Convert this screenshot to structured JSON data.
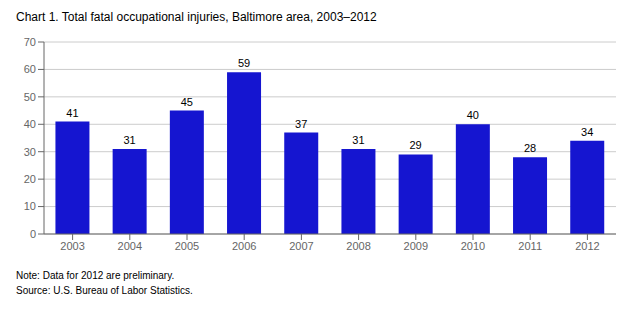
{
  "chart_data": {
    "type": "bar",
    "title": "Chart 1. Total fatal occupational injuries, Baltimore area, 2003–2012",
    "categories": [
      "2003",
      "2004",
      "2005",
      "2006",
      "2007",
      "2008",
      "2009",
      "2010",
      "2011",
      "2012"
    ],
    "values": [
      41,
      31,
      45,
      59,
      37,
      31,
      29,
      40,
      28,
      34
    ],
    "color": "#1515d0",
    "ylim": [
      0,
      70
    ],
    "yticks": [
      0,
      10,
      20,
      30,
      40,
      50,
      60,
      70
    ],
    "grid": true,
    "data_labels": true,
    "annotations": [
      "Note: Data for 2012 are preliminary.",
      "Source: U.S. Bureau of Labor Statistics."
    ]
  }
}
